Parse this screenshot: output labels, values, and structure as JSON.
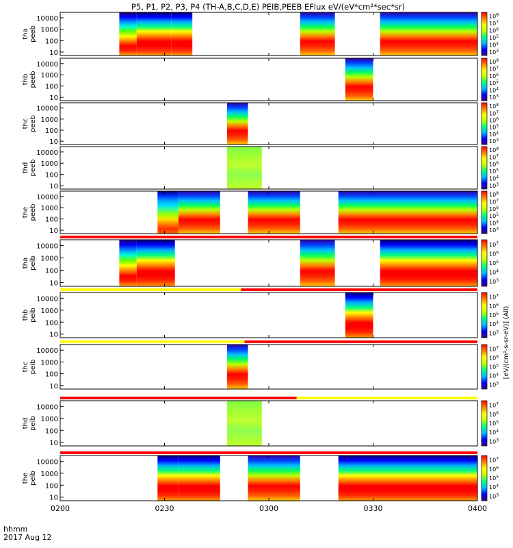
{
  "title": "P5, P1, P2, P3, P4 (TH-A,B,C,D,E) PEIB,PEEB EFlux eV/(eV*cm²*sec*sr)",
  "time_label": "hhmm",
  "date_label": "2017 Aug 12",
  "units_label": "[eV/(cm²-s-sr-eV)] (All)",
  "colors": {
    "red": "#ff0000",
    "yellow": "#ffff00",
    "black": "#000000"
  },
  "chart_data": {
    "type": "heatmap",
    "x_ticks": [
      "0200",
      "0230",
      "0300",
      "0330",
      "0400"
    ],
    "x_range_min": [
      0,
      120
    ],
    "y_ticks": [
      "10",
      "100",
      "1000",
      "10000"
    ],
    "y_range_log": [
      5,
      30000
    ],
    "panels": [
      {
        "probe": "tha",
        "species": "peeb",
        "label": [
          "tha",
          "peeb"
        ],
        "cbar_min_exp": 3,
        "cbar_max_exp": 8,
        "segments": [
          [
            17,
            22,
            "edge"
          ],
          [
            22,
            32,
            "hot"
          ],
          [
            32,
            38,
            "hot"
          ],
          [
            69,
            79,
            "warm"
          ],
          [
            92,
            120,
            "warm"
          ]
        ]
      },
      {
        "probe": "thb",
        "species": "peeb",
        "label": [
          "thb",
          "peeb"
        ],
        "cbar_min_exp": 3,
        "cbar_max_exp": 8,
        "segments": [
          [
            82,
            90,
            "warm"
          ]
        ]
      },
      {
        "probe": "thc",
        "species": "peeb",
        "label": [
          "thc",
          "peeb"
        ],
        "cbar_min_exp": 3,
        "cbar_max_exp": 8,
        "segments": [
          [
            48,
            54,
            "warm"
          ]
        ]
      },
      {
        "probe": "thd",
        "species": "peeb",
        "label": [
          "thd",
          "peeb"
        ],
        "cbar_min_exp": 3,
        "cbar_max_exp": 8,
        "segments": [
          [
            48,
            58,
            "green"
          ]
        ]
      },
      {
        "probe": "the",
        "species": "peeb",
        "label": [
          "the",
          "peeb"
        ],
        "cbar_min_exp": 3,
        "cbar_max_exp": 8,
        "segments": [
          [
            28,
            34,
            "cool"
          ],
          [
            34,
            46,
            "warm"
          ],
          [
            54,
            69,
            "warm"
          ],
          [
            80,
            120,
            "warm"
          ]
        ]
      },
      {
        "probe": "tha",
        "species": "peib",
        "label": [
          "tha",
          "peib"
        ],
        "cbar_min_exp": 3,
        "cbar_max_exp": 7,
        "segments": [
          [
            17,
            22,
            "edge"
          ],
          [
            22,
            33,
            "hot"
          ],
          [
            69,
            79,
            "warm"
          ],
          [
            92,
            120,
            "hot"
          ]
        ],
        "mode_bar": [
          [
            0,
            120,
            "red"
          ]
        ]
      },
      {
        "probe": "thb",
        "species": "peib",
        "label": [
          "thb",
          "peib"
        ],
        "cbar_min_exp": 3,
        "cbar_max_exp": 7,
        "segments": [
          [
            82,
            90,
            "hot"
          ]
        ],
        "mode_bar": [
          [
            0,
            52,
            "yellow"
          ],
          [
            52,
            120,
            "red"
          ]
        ]
      },
      {
        "probe": "thc",
        "species": "peib",
        "label": [
          "thc",
          "peib"
        ],
        "cbar_min_exp": 3,
        "cbar_max_exp": 7,
        "segments": [
          [
            48,
            54,
            "warm"
          ]
        ],
        "mode_bar": [
          [
            0,
            53,
            "yellow"
          ],
          [
            53,
            120,
            "red"
          ]
        ]
      },
      {
        "probe": "thd",
        "species": "peib",
        "label": [
          "thd",
          "peib"
        ],
        "cbar_min_exp": 3,
        "cbar_max_exp": 7,
        "segments": [
          [
            48,
            58,
            "green"
          ]
        ],
        "mode_bar": [
          [
            0,
            68,
            "red"
          ],
          [
            68,
            120,
            "yellow"
          ]
        ]
      },
      {
        "probe": "the",
        "species": "peib",
        "label": [
          "the",
          "peib"
        ],
        "cbar_min_exp": 3,
        "cbar_max_exp": 7,
        "segments": [
          [
            28,
            34,
            "hot"
          ],
          [
            34,
            46,
            "hot"
          ],
          [
            54,
            69,
            "warm"
          ],
          [
            80,
            120,
            "hot"
          ]
        ],
        "mode_bar": [
          [
            0,
            120,
            "red"
          ]
        ]
      }
    ]
  }
}
